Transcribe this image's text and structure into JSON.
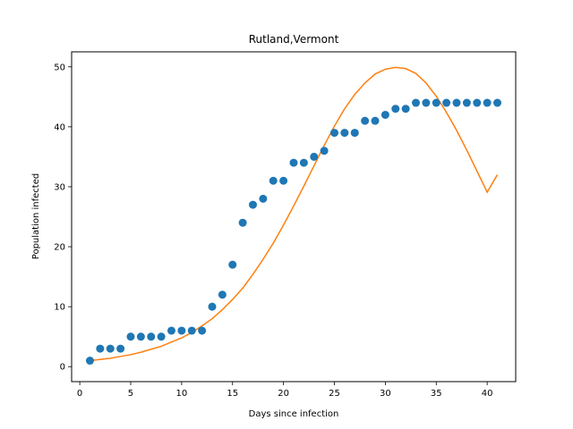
{
  "chart_data": {
    "type": "scatter",
    "title": "Rutland,Vermont",
    "xlabel": "Days since infection",
    "ylabel": "Population infected",
    "xlim": [
      -0.8,
      42.8
    ],
    "ylim": [
      -2.5,
      52.5
    ],
    "xticks": [
      0,
      5,
      10,
      15,
      20,
      25,
      30,
      35,
      40
    ],
    "yticks": [
      0,
      10,
      20,
      30,
      40,
      50
    ],
    "grid": false,
    "series": [
      {
        "kind": "scatter",
        "color": "#1f77b4",
        "x": [
          1,
          2,
          3,
          4,
          5,
          6,
          7,
          8,
          9,
          10,
          11,
          12,
          13,
          14,
          15,
          16,
          17,
          18,
          19,
          20,
          21,
          22,
          23,
          24,
          25,
          26,
          27,
          28,
          29,
          30,
          31,
          32,
          33,
          34,
          35,
          36,
          37,
          38,
          39,
          40,
          41
        ],
        "y": [
          1,
          3,
          3,
          3,
          5,
          5,
          5,
          5,
          6,
          6,
          6,
          6,
          10,
          12,
          17,
          24,
          27,
          28,
          31,
          31,
          34,
          34,
          35,
          36,
          39,
          39,
          39,
          41,
          41,
          42,
          43,
          43,
          44,
          44,
          44,
          44,
          44,
          44,
          44,
          44,
          44
        ]
      },
      {
        "kind": "line",
        "color": "#ff7f0e",
        "x": [
          1,
          2,
          3,
          4,
          5,
          6,
          7,
          8,
          9,
          10,
          11,
          12,
          13,
          14,
          15,
          16,
          17,
          18,
          19,
          20,
          21,
          22,
          23,
          24,
          25,
          26,
          27,
          28,
          29,
          30,
          31,
          32,
          33,
          34,
          35,
          36,
          37,
          38,
          39,
          40,
          41
        ],
        "y": [
          1.0,
          1.2,
          1.4,
          1.7,
          2.0,
          2.4,
          2.9,
          3.4,
          4.1,
          4.8,
          5.7,
          6.8,
          8.0,
          9.5,
          11.2,
          13.1,
          15.4,
          17.9,
          20.6,
          23.6,
          26.8,
          30.1,
          33.5,
          36.9,
          40.1,
          43.0,
          45.4,
          47.3,
          48.8,
          49.6,
          49.9,
          49.7,
          48.9,
          47.3,
          45.1,
          42.4,
          39.4,
          36.1,
          32.6,
          29.1,
          32.0
        ]
      }
    ]
  }
}
